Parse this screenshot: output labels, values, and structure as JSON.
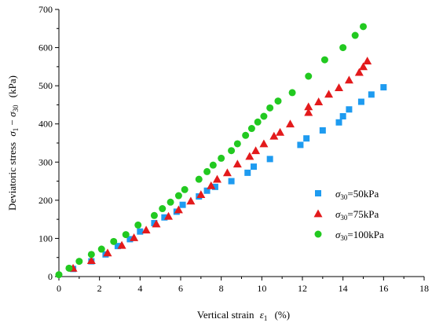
{
  "chart_data": {
    "type": "scatter",
    "xlabel": "Vertical strain",
    "xlabel_symbol": "ε",
    "xlabel_sub": "1",
    "xlabel_unit": "(%)",
    "ylabel": "Deviatoric stress",
    "ylabel_symbol_a": "σ",
    "ylabel_sub_a": "1",
    "ylabel_dash": "−",
    "ylabel_symbol_b": "σ",
    "ylabel_sub_b": "30",
    "ylabel_unit": "(kPa)",
    "xlim": [
      0,
      18
    ],
    "ylim": [
      0,
      700
    ],
    "xticks": [
      "0",
      "2",
      "4",
      "6",
      "8",
      "10",
      "12",
      "14",
      "16",
      "18"
    ],
    "yticks": [
      "0",
      "100",
      "200",
      "300",
      "400",
      "500",
      "600",
      "700"
    ],
    "grid": false,
    "legend_position": "right-middle",
    "series": [
      {
        "name_symbol": "σ",
        "name_sub": "30",
        "name_rest": "=50kPa",
        "marker": "square",
        "color": "#1E9BF0",
        "points": [
          [
            0.7,
            20
          ],
          [
            1.6,
            40
          ],
          [
            2.3,
            58
          ],
          [
            2.9,
            80
          ],
          [
            3.5,
            98
          ],
          [
            4.0,
            118
          ],
          [
            4.7,
            140
          ],
          [
            5.2,
            155
          ],
          [
            5.8,
            170
          ],
          [
            6.1,
            188
          ],
          [
            6.9,
            210
          ],
          [
            7.3,
            225
          ],
          [
            7.7,
            235
          ],
          [
            8.5,
            250
          ],
          [
            9.3,
            272
          ],
          [
            9.6,
            288
          ],
          [
            10.4,
            308
          ],
          [
            11.9,
            345
          ],
          [
            12.2,
            362
          ],
          [
            13.0,
            383
          ],
          [
            13.8,
            404
          ],
          [
            14.0,
            420
          ],
          [
            14.3,
            438
          ],
          [
            14.9,
            458
          ],
          [
            15.4,
            477
          ],
          [
            16.0,
            496
          ]
        ]
      },
      {
        "name_symbol": "σ",
        "name_sub": "30",
        "name_rest": "=75kPa",
        "marker": "triangle",
        "color": "#E31A1C",
        "points": [
          [
            0.7,
            22
          ],
          [
            1.6,
            42
          ],
          [
            2.4,
            62
          ],
          [
            3.1,
            82
          ],
          [
            3.7,
            102
          ],
          [
            4.3,
            122
          ],
          [
            4.8,
            138
          ],
          [
            5.4,
            158
          ],
          [
            5.9,
            175
          ],
          [
            6.5,
            198
          ],
          [
            7.0,
            215
          ],
          [
            7.5,
            238
          ],
          [
            7.8,
            255
          ],
          [
            8.3,
            272
          ],
          [
            8.8,
            295
          ],
          [
            9.4,
            315
          ],
          [
            9.7,
            330
          ],
          [
            10.1,
            348
          ],
          [
            10.6,
            368
          ],
          [
            10.9,
            378
          ],
          [
            11.4,
            400
          ],
          [
            12.3,
            430
          ],
          [
            12.3,
            445
          ],
          [
            12.8,
            458
          ],
          [
            13.3,
            478
          ],
          [
            13.8,
            495
          ],
          [
            14.3,
            515
          ],
          [
            14.8,
            535
          ],
          [
            15.0,
            550
          ],
          [
            15.2,
            565
          ]
        ]
      },
      {
        "name_symbol": "σ",
        "name_sub": "30",
        "name_rest": "=100kPa",
        "marker": "circle",
        "color": "#22C920",
        "points": [
          [
            0,
            5
          ],
          [
            0.5,
            22
          ],
          [
            1.0,
            40
          ],
          [
            1.6,
            58
          ],
          [
            2.1,
            72
          ],
          [
            2.7,
            92
          ],
          [
            3.3,
            110
          ],
          [
            3.9,
            135
          ],
          [
            4.7,
            160
          ],
          [
            5.1,
            178
          ],
          [
            5.5,
            195
          ],
          [
            5.9,
            212
          ],
          [
            6.2,
            228
          ],
          [
            6.9,
            255
          ],
          [
            7.3,
            275
          ],
          [
            7.6,
            292
          ],
          [
            8.0,
            310
          ],
          [
            8.5,
            330
          ],
          [
            8.8,
            348
          ],
          [
            9.2,
            370
          ],
          [
            9.5,
            388
          ],
          [
            9.8,
            405
          ],
          [
            10.1,
            420
          ],
          [
            10.4,
            442
          ],
          [
            10.8,
            460
          ],
          [
            11.5,
            482
          ],
          [
            12.3,
            525
          ],
          [
            13.1,
            568
          ],
          [
            14.0,
            600
          ],
          [
            14.6,
            632
          ],
          [
            15.0,
            655
          ]
        ]
      }
    ]
  }
}
